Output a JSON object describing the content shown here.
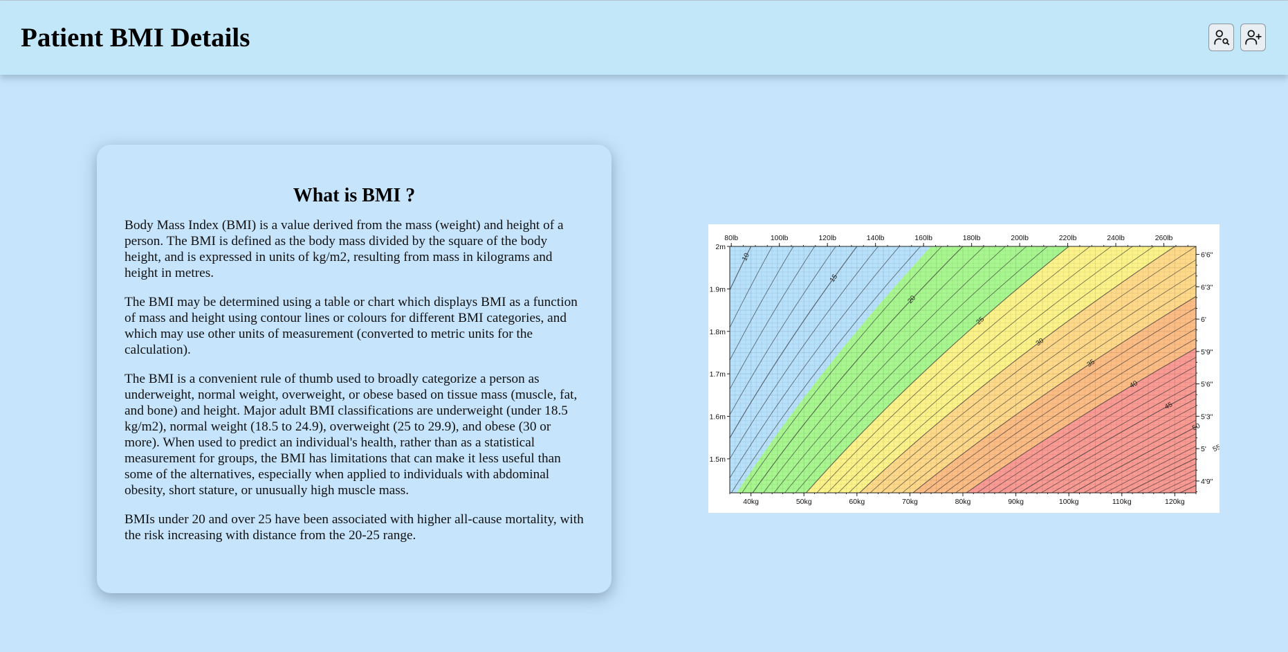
{
  "header": {
    "title": "Patient BMI Details",
    "buttons": [
      {
        "name": "search-patient-button",
        "icon": "user-search-icon"
      },
      {
        "name": "add-patient-button",
        "icon": "user-plus-icon"
      }
    ]
  },
  "info_card": {
    "heading": "What is BMI ?",
    "paragraphs": [
      "Body Mass Index (BMI) is a value derived from the mass (weight) and height of a person. The BMI is defined as the body mass divided by the square of the body height, and is expressed in units of kg/m2, resulting from mass in kilograms and height in metres.",
      "The BMI may be determined using a table or chart which displays BMI as a function of mass and height using contour lines or colours for different BMI categories, and which may use other units of measurement (converted to metric units for the calculation).",
      "The BMI is a convenient rule of thumb used to broadly categorize a person as underweight, normal weight, overweight, or obese based on tissue mass (muscle, fat, and bone) and height. Major adult BMI classifications are underweight (under 18.5 kg/m2), normal weight (18.5 to 24.9), overweight (25 to 29.9), and obese (30 or more). When used to predict an individual's health, rather than as a statistical measurement for groups, the BMI has limitations that can make it less useful than some of the alternatives, especially when applied to individuals with abdominal obesity, short stature, or unusually high muscle mass.",
      "BMIs under 20 and over 25 have been associated with higher all-cause mortality, with the risk increasing with distance from the 20-25 range."
    ]
  },
  "chart_data": {
    "type": "heatmap",
    "description_kind": "BMI contour chart",
    "x_kg_range": [
      36,
      124
    ],
    "y_m_range": [
      1.42,
      2.0
    ],
    "bottom_ticks": [
      "40kg",
      "50kg",
      "60kg",
      "70kg",
      "80kg",
      "90kg",
      "100kg",
      "110kg",
      "120kg"
    ],
    "bottom_tick_values": [
      40,
      50,
      60,
      70,
      80,
      90,
      100,
      110,
      120
    ],
    "top_ticks": [
      "80lb",
      "100lb",
      "120lb",
      "140lb",
      "160lb",
      "180lb",
      "200lb",
      "220lb",
      "240lb",
      "260lb"
    ],
    "top_tick_values_lb": [
      80,
      100,
      120,
      140,
      160,
      180,
      200,
      220,
      240,
      260
    ],
    "left_ticks": [
      "1.5m",
      "1.6m",
      "1.7m",
      "1.8m",
      "1.9m",
      "2m"
    ],
    "left_tick_values": [
      1.5,
      1.6,
      1.7,
      1.8,
      1.9,
      2.0
    ],
    "right_ticks": [
      "4'9\"",
      "5'",
      "5'3\"",
      "5'6\"",
      "5'9\"",
      "6'",
      "6'3\"",
      "6'6\""
    ],
    "right_tick_values_in": [
      57,
      60,
      63,
      66,
      69,
      72,
      75,
      78
    ],
    "contour_labels": [
      "10",
      "15",
      "20",
      "25",
      "30",
      "35",
      "40",
      "45",
      "50",
      "55"
    ],
    "contour_label_values": [
      10,
      15,
      20,
      25,
      30,
      35,
      40,
      45,
      50,
      55
    ],
    "bands": [
      {
        "from": 0,
        "to": 18.5,
        "color": "#b7e0fb"
      },
      {
        "from": 18.5,
        "to": 25,
        "color": "#a8f68f"
      },
      {
        "from": 25,
        "to": 30,
        "color": "#fcf28a"
      },
      {
        "from": 30,
        "to": 35,
        "color": "#fed98a"
      },
      {
        "from": 35,
        "to": 40,
        "color": "#fcbd85"
      },
      {
        "from": 40,
        "to": 100,
        "color": "#f99a93"
      }
    ]
  }
}
